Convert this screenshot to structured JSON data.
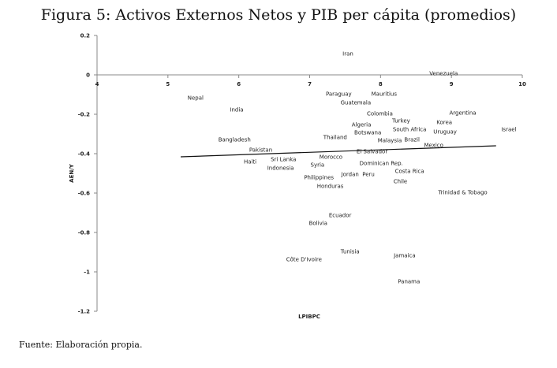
{
  "chart_data": {
    "type": "scatter",
    "title": "Figura 5: Activos Externos Netos y PIB per cápita (promedios)",
    "xlabel": "LPIBPC",
    "ylabel": "AEN/Y",
    "xlim": [
      4,
      10
    ],
    "ylim": [
      -1.2,
      0.2
    ],
    "xticks": [
      "4",
      "5",
      "6",
      "7",
      "8",
      "9",
      "10"
    ],
    "yticks": [
      "0.2",
      "0",
      "-0.2",
      "-0.4",
      "-0.6",
      "-0.8",
      "-1",
      "-1.2"
    ],
    "grid": false,
    "trendline": {
      "x": [
        5.18,
        9.63
      ],
      "y": [
        -0.416,
        -0.36
      ]
    },
    "points": [
      {
        "label": "Iran",
        "x": 7.54,
        "y": 0.108
      },
      {
        "label": "Venezuela",
        "x": 8.89,
        "y": -0.024
      },
      {
        "label": "Nepal",
        "x": 5.39,
        "y": -0.116
      },
      {
        "label": "Mauritius",
        "x": 8.05,
        "y": -0.096
      },
      {
        "label": "Guatemala",
        "x": 7.65,
        "y": -0.108
      },
      {
        "label": "Paraguay",
        "x": 7.41,
        "y": -0.128
      },
      {
        "label": "India",
        "x": 5.97,
        "y": -0.176
      },
      {
        "label": "Colombia",
        "x": 7.99,
        "y": -0.196
      },
      {
        "label": "Algeria",
        "x": 7.73,
        "y": -0.22
      },
      {
        "label": "Argentina",
        "x": 9.16,
        "y": -0.192
      },
      {
        "label": "Korea",
        "x": 8.9,
        "y": -0.208
      },
      {
        "label": "Uruguay",
        "x": 8.91,
        "y": -0.224
      },
      {
        "label": "Turkey",
        "x": 8.29,
        "y": -0.232
      },
      {
        "label": "South Africa",
        "x": 8.41,
        "y": -0.244
      },
      {
        "label": "Israel",
        "x": 9.81,
        "y": -0.276
      },
      {
        "label": "Botswana",
        "x": 7.82,
        "y": -0.292
      },
      {
        "label": "Malaysia",
        "x": 8.13,
        "y": -0.3
      },
      {
        "label": "Thailand",
        "x": 7.36,
        "y": -0.316
      },
      {
        "label": "El Salvador",
        "x": 7.88,
        "y": -0.324
      },
      {
        "label": "Brazil",
        "x": 8.31,
        "y": -0.328
      },
      {
        "label": "Bangladesh",
        "x": 5.94,
        "y": -0.328
      },
      {
        "label": "Mexico",
        "x": 8.75,
        "y": -0.356
      },
      {
        "label": "Pakistan",
        "x": 6.31,
        "y": -0.38
      },
      {
        "label": "Dominican Rep.",
        "x": 8.01,
        "y": -0.384
      },
      {
        "label": "Sri Lanka",
        "x": 6.63,
        "y": -0.396
      },
      {
        "label": "Morocco",
        "x": 7.3,
        "y": -0.416
      },
      {
        "label": "Syria",
        "x": 7.11,
        "y": -0.424
      },
      {
        "label": "Haiti",
        "x": 6.16,
        "y": -0.44
      },
      {
        "label": "Indonesia",
        "x": 6.59,
        "y": -0.44
      },
      {
        "label": "Philippines",
        "x": 7.13,
        "y": -0.488
      },
      {
        "label": "Honduras",
        "x": 7.29,
        "y": -0.5
      },
      {
        "label": "Peru",
        "x": 7.83,
        "y": -0.504
      },
      {
        "label": "Costa Rica",
        "x": 8.41,
        "y": -0.488
      },
      {
        "label": "Chile",
        "x": 8.28,
        "y": -0.508
      },
      {
        "label": "Jordan",
        "x": 7.57,
        "y": -0.536
      },
      {
        "label": "Trinidad & Tobago",
        "x": 9.16,
        "y": -0.596
      },
      {
        "label": "Ecuador",
        "x": 7.43,
        "y": -0.712
      },
      {
        "label": "Bolivia",
        "x": 7.12,
        "y": -0.752
      },
      {
        "label": "Tunisia",
        "x": 7.57,
        "y": -0.896
      },
      {
        "label": "Jamaica",
        "x": 8.34,
        "y": -0.916
      },
      {
        "label": "Côte D'Ivoire",
        "x": 6.92,
        "y": -0.936
      },
      {
        "label": "Panama",
        "x": 8.4,
        "y": -1.048
      }
    ]
  },
  "footer": "Fuente: Elaboración propia."
}
